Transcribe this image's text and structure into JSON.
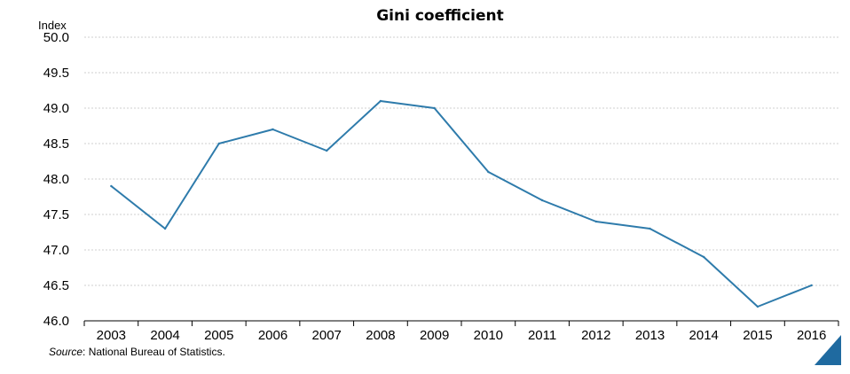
{
  "chart_data": {
    "type": "line",
    "title": "Gini coefficient",
    "ylabel": "Index",
    "x": [
      "2003",
      "2004",
      "2005",
      "2006",
      "2007",
      "2008",
      "2009",
      "2010",
      "2011",
      "2012",
      "2013",
      "2014",
      "2015",
      "2016"
    ],
    "series": [
      {
        "values": [
          47.9,
          47.3,
          48.5,
          48.7,
          48.4,
          49.1,
          49.0,
          48.1,
          47.7,
          47.4,
          47.3,
          46.9,
          46.2,
          46.5
        ]
      }
    ],
    "ylim": [
      46.0,
      50.0
    ],
    "yticks": [
      "46.0",
      "46.5",
      "47.0",
      "47.5",
      "48.0",
      "48.5",
      "49.0",
      "49.5",
      "50.0"
    ],
    "grid": true,
    "line_color": "#2e7bab"
  },
  "source": {
    "prefix": "Source",
    "text": ": National Bureau of Statistics."
  },
  "corner_color": "#1f6aa0"
}
